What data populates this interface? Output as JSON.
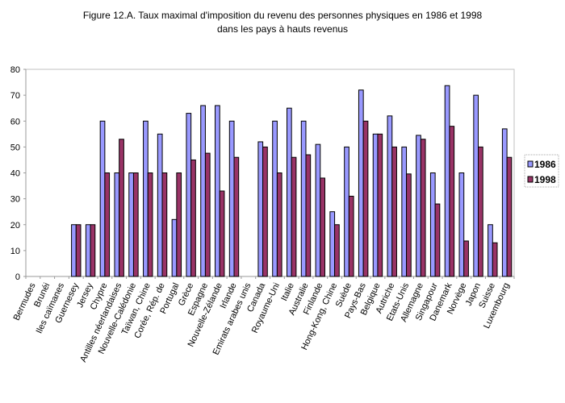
{
  "chart_data": {
    "type": "bar",
    "title": "Figure 12.A. Taux maximal d'imposition du revenu des personnes physiques en 1986 et 1998",
    "subtitle": "dans les pays à hauts revenus",
    "xlabel": "",
    "ylabel": "",
    "ylim": [
      0,
      80
    ],
    "yticks": [
      0,
      10,
      20,
      30,
      40,
      50,
      60,
      70,
      80
    ],
    "grid": false,
    "legend_position": "right",
    "categories": [
      "Bermudes",
      "Brunéi",
      "Iles caïmanes",
      "Guernesey",
      "Jersey",
      "Chypre",
      "Antilles néerlandaises",
      "Nouvelle-Calédonie",
      "Taïwan, Chine",
      "Corée, Rép. de",
      "Portugal",
      "Grèce",
      "Espagne",
      "Nouvelle-Zélande",
      "Irlande",
      "Emirats arabes unis",
      "Canada",
      "Royaume-Uni",
      "Italie",
      "Australie",
      "Finlande",
      "Hong-Kong, Chine",
      "Suède",
      "Pays-Bas",
      "Belgique",
      "Autriche",
      "Etats-Unis",
      "Allemagne",
      "Singapour",
      "Danemark",
      "Norvège",
      "Japon",
      "Suisse",
      "Luxembourg"
    ],
    "series": [
      {
        "name": "1986",
        "color": "#9999ff",
        "values": [
          0,
          0,
          0,
          20,
          20,
          60,
          40,
          40,
          60,
          55,
          22,
          63,
          66,
          66,
          60,
          0,
          52,
          60,
          65,
          60,
          51,
          25,
          50,
          72,
          55,
          62,
          50,
          54.5,
          40,
          73.7,
          40,
          70,
          20,
          57
        ]
      },
      {
        "name": "1998",
        "color": "#993366",
        "values": [
          0,
          0,
          0,
          20,
          20,
          40,
          53,
          40,
          40,
          40,
          40,
          45,
          47.6,
          33,
          46,
          0,
          50,
          40,
          46,
          47,
          38,
          20,
          31,
          60,
          55,
          50,
          39.6,
          53,
          28,
          58,
          13.7,
          50,
          13,
          46
        ]
      }
    ]
  }
}
